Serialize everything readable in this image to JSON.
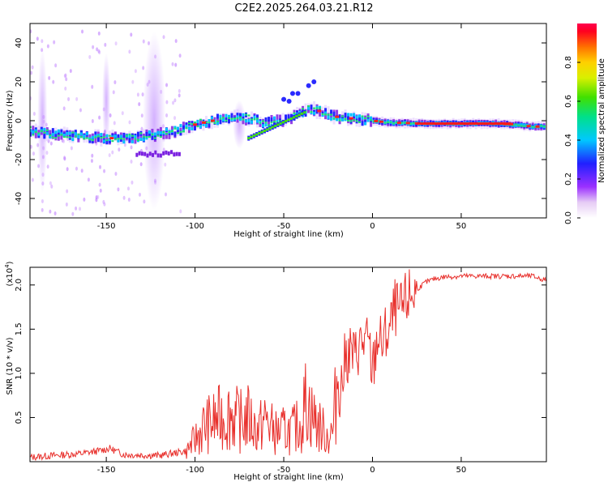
{
  "title": "C2E2.2025.264.03.21.R12",
  "chart_data": [
    {
      "type": "heatmap",
      "xlabel": "Height of straight line (km)",
      "ylabel": "Frequency (Hz)",
      "xlim": [
        -193,
        98
      ],
      "ylim": [
        -50,
        50
      ],
      "xticks": [
        -150,
        -100,
        -50,
        0,
        50
      ],
      "xtick_labels": [
        "-150",
        "-100",
        "-50",
        "0",
        "50"
      ],
      "yticks": [
        -40,
        -20,
        0,
        20,
        40
      ],
      "ytick_labels": [
        "-40",
        "-20",
        "0",
        "20",
        "40"
      ],
      "ridge": {
        "x": [
          -193,
          -180,
          -165,
          -150,
          -135,
          -120,
          -110,
          -100,
          -90,
          -80,
          -70,
          -60,
          -50,
          -40,
          -35,
          -30,
          -25,
          -20,
          -10,
          0,
          10,
          30,
          50,
          70,
          80,
          90,
          98
        ],
        "y": [
          -5,
          -7,
          -8,
          -9,
          -9,
          -7,
          -5,
          -2,
          0,
          2,
          1,
          -1,
          0,
          4,
          6,
          5,
          3,
          2,
          1,
          0,
          -1,
          -1.5,
          -1.5,
          -1.5,
          -2,
          -3,
          -3
        ]
      },
      "colorbar": {
        "label": "Normalized spectral amplitude",
        "range": [
          0,
          1
        ],
        "ticks": [
          0,
          0.2,
          0.4,
          0.6,
          0.8
        ],
        "tick_labels": [
          "0.0",
          "0.2",
          "0.4",
          "0.6",
          "0.8"
        ]
      }
    },
    {
      "type": "line",
      "xlabel": "Height of straight line (km)",
      "ylabel": "SNR (10 * v/v)",
      "exponent_label": "(x10",
      "exponent_power": "4",
      "exponent_close": ")",
      "xlim": [
        -193,
        98
      ],
      "ylim": [
        0,
        2.2
      ],
      "xticks": [
        -150,
        -100,
        -50,
        0,
        50
      ],
      "xtick_labels": [
        "-150",
        "-100",
        "-50",
        "0",
        "50"
      ],
      "yticks": [
        0.5,
        1.0,
        1.5,
        2.0
      ],
      "ytick_labels": [
        "0.5",
        "1.0",
        "1.5",
        "2.0"
      ],
      "series": [
        {
          "name": "SNR",
          "color": "#e8302c",
          "x": [
            -193,
            -180,
            -165,
            -155,
            -148,
            -140,
            -120,
            -105,
            -100,
            -95,
            -90,
            -85,
            -80,
            -75,
            -70,
            -65,
            -60,
            -55,
            -50,
            -45,
            -40,
            -37,
            -35,
            -30,
            -25,
            -22,
            -20,
            -18,
            -15,
            -12,
            -10,
            -8,
            -5,
            -2,
            0,
            3,
            5,
            8,
            10,
            13,
            15,
            20,
            25,
            30,
            35,
            40,
            50,
            60,
            70,
            80,
            90,
            98
          ],
          "y": [
            0.05,
            0.07,
            0.09,
            0.12,
            0.15,
            0.08,
            0.07,
            0.12,
            0.25,
            0.4,
            0.45,
            0.5,
            0.55,
            0.45,
            0.5,
            0.35,
            0.48,
            0.33,
            0.35,
            0.35,
            0.45,
            0.75,
            0.55,
            0.4,
            0.28,
            0.35,
            0.95,
            0.8,
            1.2,
            1.25,
            1.15,
            1.3,
            1.35,
            1.3,
            1.0,
            1.45,
            1.3,
            1.45,
            1.5,
            1.75,
            1.65,
            1.85,
            1.95,
            2.03,
            2.07,
            2.09,
            2.1,
            2.1,
            2.1,
            2.1,
            2.1,
            2.05
          ]
        }
      ]
    }
  ]
}
